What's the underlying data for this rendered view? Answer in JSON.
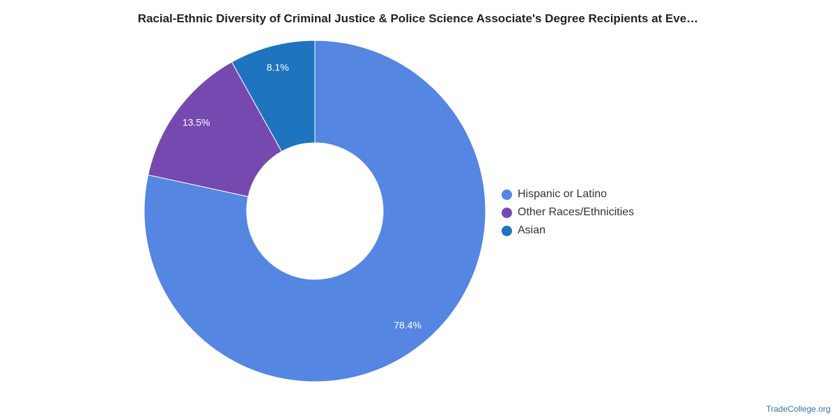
{
  "title": "Racial-Ethnic Diversity of Criminal Justice & Police Science Associate's Degree Recipients at Eve…",
  "credit": "TradeCollege.org",
  "chart_data": {
    "type": "pie",
    "variant": "donut",
    "title": "Racial-Ethnic Diversity of Criminal Justice & Police Science Associate's Degree Recipients at Eve…",
    "categories": [
      "Hispanic or Latino",
      "Other Races/Ethnicities",
      "Asian"
    ],
    "values": [
      78.4,
      13.5,
      8.1
    ],
    "labels": [
      "78.4%",
      "13.5%",
      "8.1%"
    ],
    "colors": [
      "#5486e2",
      "#7549b0",
      "#1f74bf"
    ],
    "legend_position": "right"
  }
}
